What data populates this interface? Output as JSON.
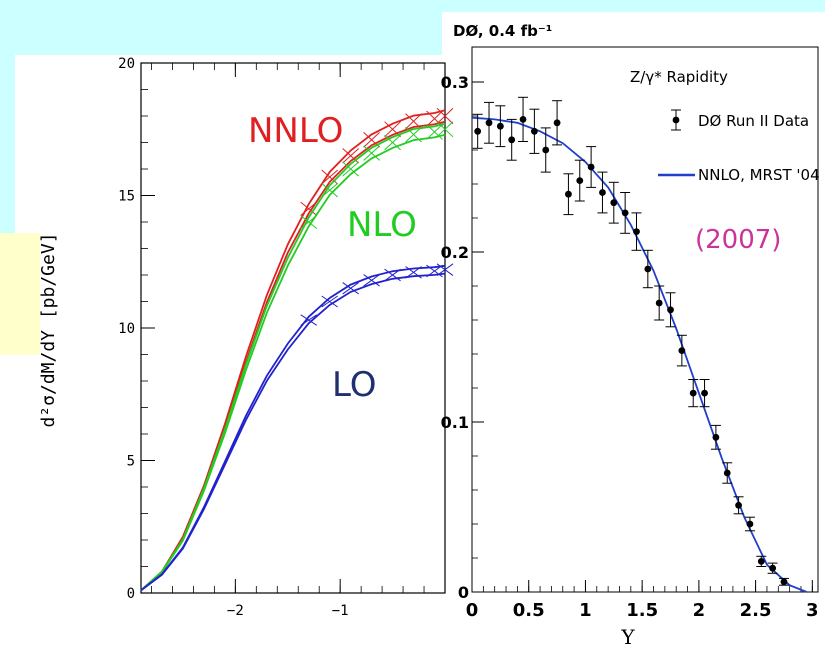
{
  "colors": {
    "background_cyan": "#ccffff",
    "background_yellow": "#ffffcc",
    "nnlo_red": "#e02020",
    "nlo_green": "#22cc22",
    "lo_blue": "#2222cc",
    "lo_label": "#1f2f6f",
    "year_magenta": "#cc3399",
    "theory_blue": "#1f3fcc"
  },
  "chart_data": [
    {
      "type": "line",
      "ylabel": "d²σ/dM/dY [pb/GeV]",
      "xlim": [
        -2.9,
        0
      ],
      "ylim": [
        0,
        20
      ],
      "x_ticks": [
        -2,
        -1
      ],
      "x_tick_labels": [
        "−2",
        "−1"
      ],
      "y_ticks": [
        0,
        5,
        10,
        15,
        20
      ],
      "y_tick_labels": [
        "0",
        "5",
        "10",
        "15",
        "20"
      ],
      "grid": false,
      "annotations": [
        "NNLO",
        "NLO",
        "LO"
      ],
      "series": [
        {
          "name": "NNLO",
          "color": "#e02020",
          "x": [
            -2.9,
            -2.7,
            -2.5,
            -2.3,
            -2.1,
            -1.9,
            -1.7,
            -1.5,
            -1.3,
            -1.1,
            -0.9,
            -0.7,
            -0.5,
            -0.3,
            -0.1,
            0
          ],
          "values": [
            0.1,
            0.8,
            2.1,
            4.0,
            6.3,
            8.8,
            11.1,
            13.0,
            14.5,
            15.7,
            16.5,
            17.1,
            17.5,
            17.8,
            17.9,
            18.0
          ]
        },
        {
          "name": "NLO",
          "color": "#22cc22",
          "x": [
            -2.9,
            -2.7,
            -2.5,
            -2.3,
            -2.1,
            -1.9,
            -1.7,
            -1.5,
            -1.3,
            -1.1,
            -0.9,
            -0.7,
            -0.5,
            -0.3,
            -0.1,
            0
          ],
          "values": [
            0.1,
            0.8,
            2.0,
            3.9,
            6.1,
            8.5,
            10.7,
            12.5,
            14.0,
            15.2,
            16.0,
            16.6,
            17.0,
            17.3,
            17.4,
            17.5
          ]
        },
        {
          "name": "LO",
          "color": "#2222cc",
          "x": [
            -2.9,
            -2.7,
            -2.5,
            -2.3,
            -2.1,
            -1.9,
            -1.7,
            -1.5,
            -1.3,
            -1.1,
            -0.9,
            -0.7,
            -0.5,
            -0.3,
            -0.1,
            0
          ],
          "values": [
            0.1,
            0.7,
            1.7,
            3.2,
            4.9,
            6.6,
            8.1,
            9.3,
            10.3,
            11.0,
            11.5,
            11.8,
            12.0,
            12.1,
            12.15,
            12.2
          ]
        }
      ]
    },
    {
      "type": "scatter",
      "title": "DØ, 0.4 fb⁻¹",
      "xlabel": "Y",
      "xlim": [
        0,
        3.05
      ],
      "ylim": [
        0,
        0.3
      ],
      "x_ticks": [
        0,
        0.5,
        1,
        1.5,
        2,
        2.5,
        3
      ],
      "x_tick_labels": [
        "0",
        "0.5",
        "1",
        "1.5",
        "2",
        "2.5",
        "3"
      ],
      "y_ticks": [
        0,
        0.1,
        0.2,
        0.3
      ],
      "y_tick_labels": [
        "0",
        "0.1",
        "0.2",
        "0.3"
      ],
      "grid": false,
      "legend_position": "top-right",
      "legend_title": "Z/γ* Rapidity",
      "annotation": "(2007)",
      "series": [
        {
          "name": "DØ Run II Data",
          "x": [
            0.05,
            0.15,
            0.25,
            0.35,
            0.45,
            0.55,
            0.65,
            0.75,
            0.85,
            0.95,
            1.05,
            1.15,
            1.25,
            1.35,
            1.45,
            1.55,
            1.65,
            1.75,
            1.85,
            1.95,
            2.05,
            2.15,
            2.25,
            2.35,
            2.45,
            2.55,
            2.65,
            2.75
          ],
          "values": [
            0.271,
            0.276,
            0.274,
            0.266,
            0.278,
            0.271,
            0.26,
            0.276,
            0.234,
            0.242,
            0.25,
            0.235,
            0.229,
            0.223,
            0.212,
            0.19,
            0.17,
            0.166,
            0.142,
            0.117,
            0.117,
            0.091,
            0.07,
            0.051,
            0.04,
            0.018,
            0.014,
            0.006
          ],
          "errors": [
            0.01,
            0.012,
            0.012,
            0.012,
            0.013,
            0.013,
            0.013,
            0.013,
            0.012,
            0.012,
            0.012,
            0.012,
            0.012,
            0.012,
            0.011,
            0.011,
            0.01,
            0.01,
            0.009,
            0.008,
            0.008,
            0.007,
            0.006,
            0.005,
            0.004,
            0.003,
            0.003,
            0.002
          ]
        },
        {
          "name": "NNLO, MRST '04",
          "color": "#1f3fcc",
          "x": [
            0,
            0.2,
            0.4,
            0.6,
            0.8,
            1.0,
            1.2,
            1.4,
            1.6,
            1.8,
            2.0,
            2.2,
            2.4,
            2.6,
            2.8,
            2.95
          ],
          "values": [
            0.279,
            0.278,
            0.276,
            0.271,
            0.264,
            0.253,
            0.238,
            0.216,
            0.189,
            0.155,
            0.117,
            0.079,
            0.044,
            0.016,
            0.004,
            0
          ]
        }
      ]
    }
  ]
}
